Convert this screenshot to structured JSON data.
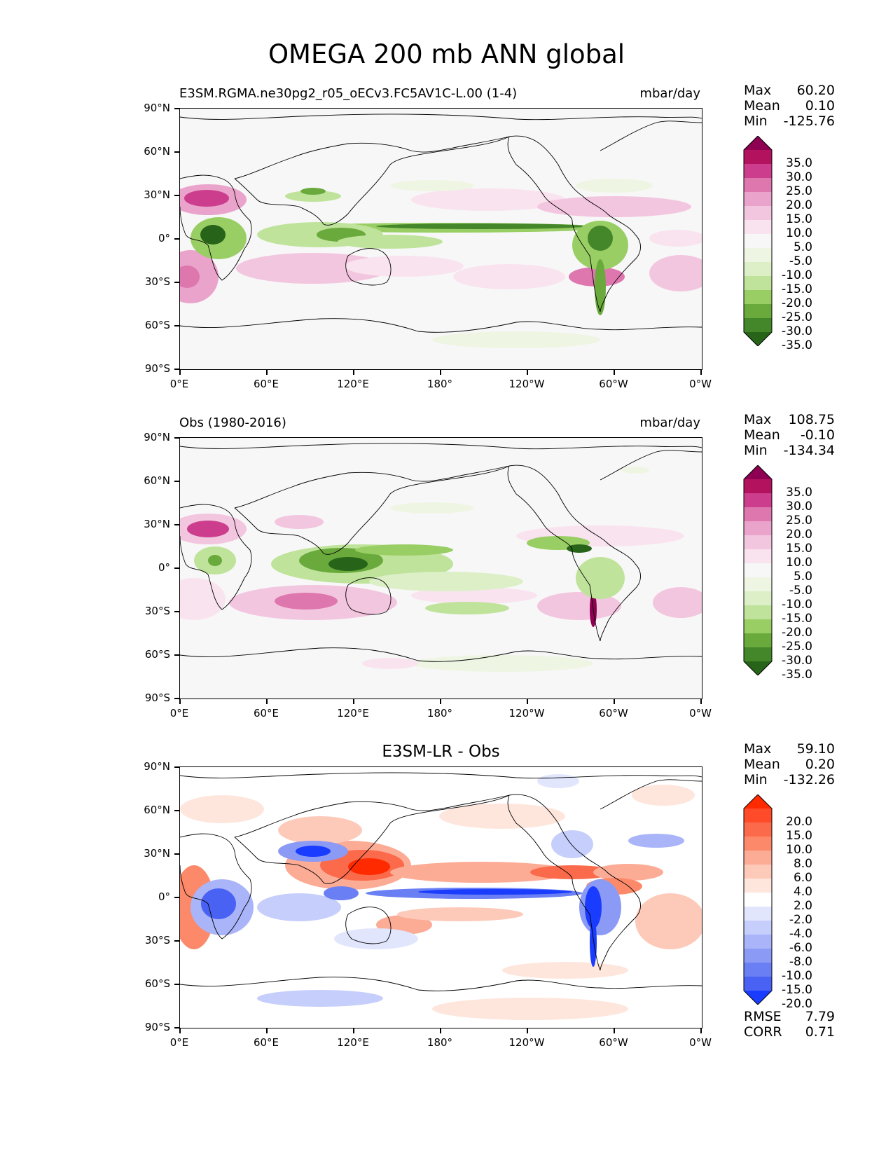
{
  "title": "OMEGA 200 mb ANN global",
  "x_ticks": [
    "0°E",
    "60°E",
    "120°E",
    "180°",
    "120°W",
    "60°W",
    "0°W"
  ],
  "y_ticks": [
    "90°N",
    "60°N",
    "30°N",
    "0°",
    "30°S",
    "60°S",
    "90°S"
  ],
  "palettes": {
    "field": {
      "labels": [
        "35.0",
        "30.0",
        "25.0",
        "20.0",
        "15.0",
        "10.0",
        "5.0",
        "-5.0",
        "-10.0",
        "-15.0",
        "-20.0",
        "-25.0",
        "-30.0",
        "-35.0"
      ],
      "colors": [
        "#8e0152",
        "#b2125e",
        "#cc3e8d",
        "#de77ae",
        "#eaa3cb",
        "#f3c6e0",
        "#f9e3ef",
        "#f7f7f7",
        "#eef6e3",
        "#dcefc7",
        "#bfe39a",
        "#99ce64",
        "#6aaa3c",
        "#44862a",
        "#276419"
      ]
    },
    "diff": {
      "labels": [
        "20.0",
        "15.0",
        "10.0",
        "8.0",
        "6.0",
        "4.0",
        "2.0",
        "-2.0",
        "-4.0",
        "-6.0",
        "-8.0",
        "-10.0",
        "-15.0",
        "-20.0"
      ],
      "colors": [
        "#ff2a00",
        "#ff4b2a",
        "#fb6a4a",
        "#fc8a6a",
        "#fcab95",
        "#fdcab9",
        "#fee6dd",
        "#ffffff",
        "#e2e6fd",
        "#c6cefc",
        "#a9b5f8",
        "#8b9bf5",
        "#6a7ff3",
        "#4a62f4",
        "#1a3cff"
      ]
    }
  },
  "panels": [
    {
      "id": "model",
      "title_left": "E3SM.RGMA.ne30pg2_r05_oECv3.FC5AV1C-L.00 (1-4)",
      "units": "mbar/day",
      "stats": {
        "max_label": "Max",
        "max": "60.20",
        "mean_label": "Mean",
        "mean": "0.10",
        "min_label": "Min",
        "min": "-125.76"
      }
    },
    {
      "id": "obs",
      "title_left": "Obs (1980-2016)",
      "units": "mbar/day",
      "stats": {
        "max_label": "Max",
        "max": "108.75",
        "mean_label": "Mean",
        "mean": "-0.10",
        "min_label": "Min",
        "min": "-134.34"
      }
    },
    {
      "id": "diff",
      "title_center": "E3SM-LR - Obs",
      "stats": {
        "max_label": "Max",
        "max": "59.10",
        "mean_label": "Mean",
        "mean": "0.20",
        "min_label": "Min",
        "min": "-132.26"
      },
      "metrics": {
        "rmse_label": "RMSE",
        "rmse": "7.79",
        "corr_label": "CORR",
        "corr": "0.71"
      }
    }
  ]
}
